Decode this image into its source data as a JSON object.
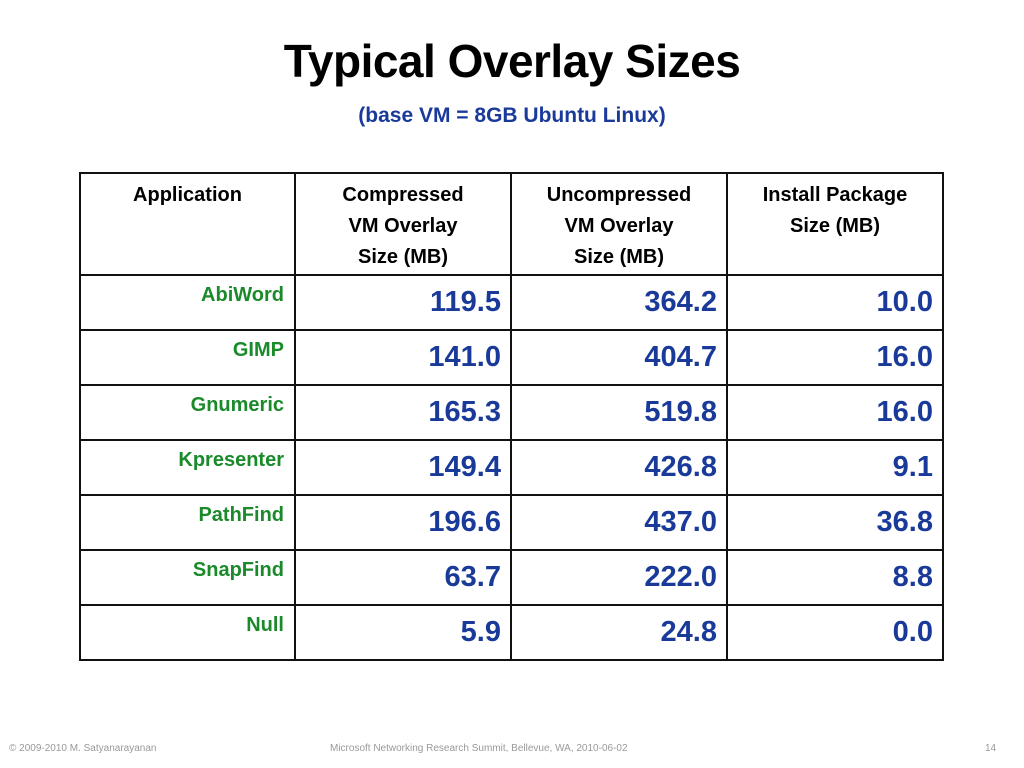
{
  "slide": {
    "title": "Typical Overlay Sizes",
    "subtitle": "(base VM = 8GB Ubuntu Linux)"
  },
  "table": {
    "headers": [
      [
        "Application"
      ],
      [
        "Compressed",
        "VM Overlay",
        "Size (MB)"
      ],
      [
        "Uncompressed",
        "VM Overlay",
        "Size (MB)"
      ],
      [
        "Install Package",
        "Size (MB)"
      ]
    ],
    "rows": [
      {
        "app": "AbiWord",
        "compressed": "119.5",
        "uncompressed": "364.2",
        "install": "10.0"
      },
      {
        "app": "GIMP",
        "compressed": "141.0",
        "uncompressed": "404.7",
        "install": "16.0"
      },
      {
        "app": "Gnumeric",
        "compressed": "165.3",
        "uncompressed": "519.8",
        "install": "16.0"
      },
      {
        "app": "Kpresenter",
        "compressed": "149.4",
        "uncompressed": "426.8",
        "install": "9.1"
      },
      {
        "app": "PathFind",
        "compressed": "196.6",
        "uncompressed": "437.0",
        "install": "36.8"
      },
      {
        "app": "SnapFind",
        "compressed": "63.7",
        "uncompressed": "222.0",
        "install": "8.8"
      },
      {
        "app": "Null",
        "compressed": "5.9",
        "uncompressed": "24.8",
        "install": "0.0"
      }
    ]
  },
  "footer": {
    "copyright": "© 2009-2010  M. Satyanarayanan",
    "event": "Microsoft Networking Research Summit, Bellevue, WA,  2010-06-02",
    "page_number": "14"
  },
  "colors": {
    "app_name": "#1a8a2a",
    "values": "#1a3a9a",
    "subtitle": "#1a3a9a"
  }
}
